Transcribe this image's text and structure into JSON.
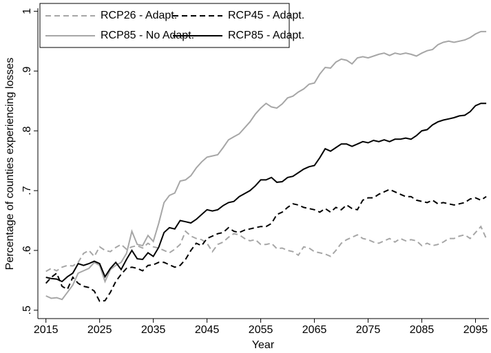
{
  "chart_data": {
    "type": "line",
    "y_label": "Percentage of counties experiencing losses",
    "x_label": "Year",
    "x": [
      2015,
      2016,
      2017,
      2018,
      2019,
      2020,
      2021,
      2022,
      2023,
      2024,
      2025,
      2026,
      2027,
      2028,
      2029,
      2030,
      2031,
      2032,
      2033,
      2034,
      2035,
      2036,
      2037,
      2038,
      2039,
      2040,
      2041,
      2042,
      2043,
      2044,
      2045,
      2046,
      2047,
      2048,
      2049,
      2050,
      2051,
      2052,
      2053,
      2054,
      2055,
      2056,
      2057,
      2058,
      2059,
      2060,
      2061,
      2062,
      2063,
      2064,
      2065,
      2066,
      2067,
      2068,
      2069,
      2070,
      2071,
      2072,
      2073,
      2074,
      2075,
      2076,
      2077,
      2078,
      2079,
      2080,
      2081,
      2082,
      2083,
      2084,
      2085,
      2086,
      2087,
      2088,
      2089,
      2090,
      2091,
      2092,
      2093,
      2094,
      2095,
      2096,
      2097
    ],
    "series": [
      {
        "name": "RCP26 - Adapt.",
        "color": "#a6a6a6",
        "linestyle": "dashed",
        "values": [
          0.565,
          0.57,
          0.566,
          0.572,
          0.575,
          0.574,
          0.58,
          0.595,
          0.6,
          0.59,
          0.606,
          0.6,
          0.598,
          0.605,
          0.61,
          0.602,
          0.606,
          0.608,
          0.604,
          0.612,
          0.606,
          0.604,
          0.6,
          0.596,
          0.602,
          0.61,
          0.632,
          0.624,
          0.62,
          0.618,
          0.612,
          0.598,
          0.61,
          0.614,
          0.622,
          0.628,
          0.626,
          0.62,
          0.616,
          0.618,
          0.61,
          0.61,
          0.612,
          0.603,
          0.604,
          0.6,
          0.598,
          0.592,
          0.606,
          0.604,
          0.598,
          0.596,
          0.594,
          0.59,
          0.6,
          0.612,
          0.618,
          0.622,
          0.626,
          0.62,
          0.618,
          0.614,
          0.612,
          0.616,
          0.62,
          0.614,
          0.62,
          0.616,
          0.618,
          0.616,
          0.608,
          0.612,
          0.608,
          0.61,
          0.614,
          0.62,
          0.62,
          0.624,
          0.626,
          0.62,
          0.63,
          0.64,
          0.62
        ]
      },
      {
        "name": "RCP45 - Adapt.",
        "color": "#000000",
        "linestyle": "dashed",
        "values": [
          0.545,
          0.555,
          0.562,
          0.54,
          0.535,
          0.555,
          0.545,
          0.54,
          0.538,
          0.532,
          0.515,
          0.516,
          0.53,
          0.548,
          0.56,
          0.57,
          0.572,
          0.57,
          0.566,
          0.575,
          0.576,
          0.58,
          0.58,
          0.576,
          0.572,
          0.575,
          0.585,
          0.6,
          0.612,
          0.608,
          0.62,
          0.624,
          0.628,
          0.63,
          0.638,
          0.632,
          0.63,
          0.634,
          0.636,
          0.638,
          0.64,
          0.64,
          0.645,
          0.66,
          0.664,
          0.672,
          0.678,
          0.676,
          0.672,
          0.67,
          0.668,
          0.664,
          0.67,
          0.664,
          0.672,
          0.668,
          0.676,
          0.67,
          0.668,
          0.684,
          0.688,
          0.688,
          0.694,
          0.698,
          0.702,
          0.698,
          0.694,
          0.69,
          0.69,
          0.684,
          0.682,
          0.68,
          0.684,
          0.678,
          0.68,
          0.678,
          0.676,
          0.678,
          0.68,
          0.686,
          0.688,
          0.684,
          0.69
        ]
      },
      {
        "name": "RCP85 - No Adapt.",
        "color": "#a6a6a6",
        "linestyle": "solid",
        "values": [
          0.524,
          0.52,
          0.521,
          0.518,
          0.53,
          0.542,
          0.562,
          0.566,
          0.57,
          0.58,
          0.575,
          0.548,
          0.568,
          0.575,
          0.58,
          0.595,
          0.632,
          0.61,
          0.608,
          0.625,
          0.615,
          0.645,
          0.68,
          0.692,
          0.696,
          0.716,
          0.718,
          0.725,
          0.738,
          0.748,
          0.756,
          0.758,
          0.76,
          0.772,
          0.785,
          0.79,
          0.795,
          0.805,
          0.815,
          0.828,
          0.838,
          0.846,
          0.84,
          0.838,
          0.845,
          0.855,
          0.858,
          0.865,
          0.87,
          0.878,
          0.88,
          0.895,
          0.906,
          0.905,
          0.915,
          0.92,
          0.918,
          0.912,
          0.922,
          0.924,
          0.922,
          0.925,
          0.928,
          0.93,
          0.926,
          0.93,
          0.928,
          0.93,
          0.928,
          0.925,
          0.93,
          0.934,
          0.936,
          0.944,
          0.948,
          0.95,
          0.948,
          0.95,
          0.952,
          0.956,
          0.962,
          0.966,
          0.966
        ]
      },
      {
        "name": "RCP85 - Adapt.",
        "color": "#000000",
        "linestyle": "solid",
        "values": [
          0.555,
          0.553,
          0.552,
          0.548,
          0.556,
          0.562,
          0.578,
          0.575,
          0.578,
          0.582,
          0.578,
          0.556,
          0.57,
          0.58,
          0.568,
          0.585,
          0.6,
          0.586,
          0.585,
          0.596,
          0.59,
          0.605,
          0.63,
          0.638,
          0.636,
          0.65,
          0.648,
          0.646,
          0.652,
          0.66,
          0.668,
          0.666,
          0.668,
          0.675,
          0.68,
          0.682,
          0.69,
          0.695,
          0.7,
          0.708,
          0.718,
          0.718,
          0.722,
          0.714,
          0.715,
          0.722,
          0.724,
          0.73,
          0.736,
          0.74,
          0.742,
          0.755,
          0.77,
          0.766,
          0.772,
          0.778,
          0.778,
          0.774,
          0.778,
          0.782,
          0.78,
          0.784,
          0.782,
          0.785,
          0.782,
          0.786,
          0.786,
          0.788,
          0.786,
          0.792,
          0.8,
          0.802,
          0.81,
          0.815,
          0.818,
          0.82,
          0.822,
          0.825,
          0.826,
          0.832,
          0.842,
          0.846,
          0.846
        ]
      }
    ],
    "xlim": [
      2013.5,
      2097.5
    ],
    "xticks": [
      2015,
      2025,
      2035,
      2045,
      2055,
      2065,
      2075,
      2085,
      2095
    ],
    "ylim": [
      0.486,
      1.005
    ],
    "yticks": [
      {
        "value": 0.5,
        "label": ".5"
      },
      {
        "value": 0.6,
        "label": ".6"
      },
      {
        "value": 0.7,
        "label": ".7"
      },
      {
        "value": 0.8,
        "label": ".8"
      },
      {
        "value": 0.9,
        "label": ".9"
      },
      1
    ],
    "legend": "top-left",
    "grid": false
  }
}
